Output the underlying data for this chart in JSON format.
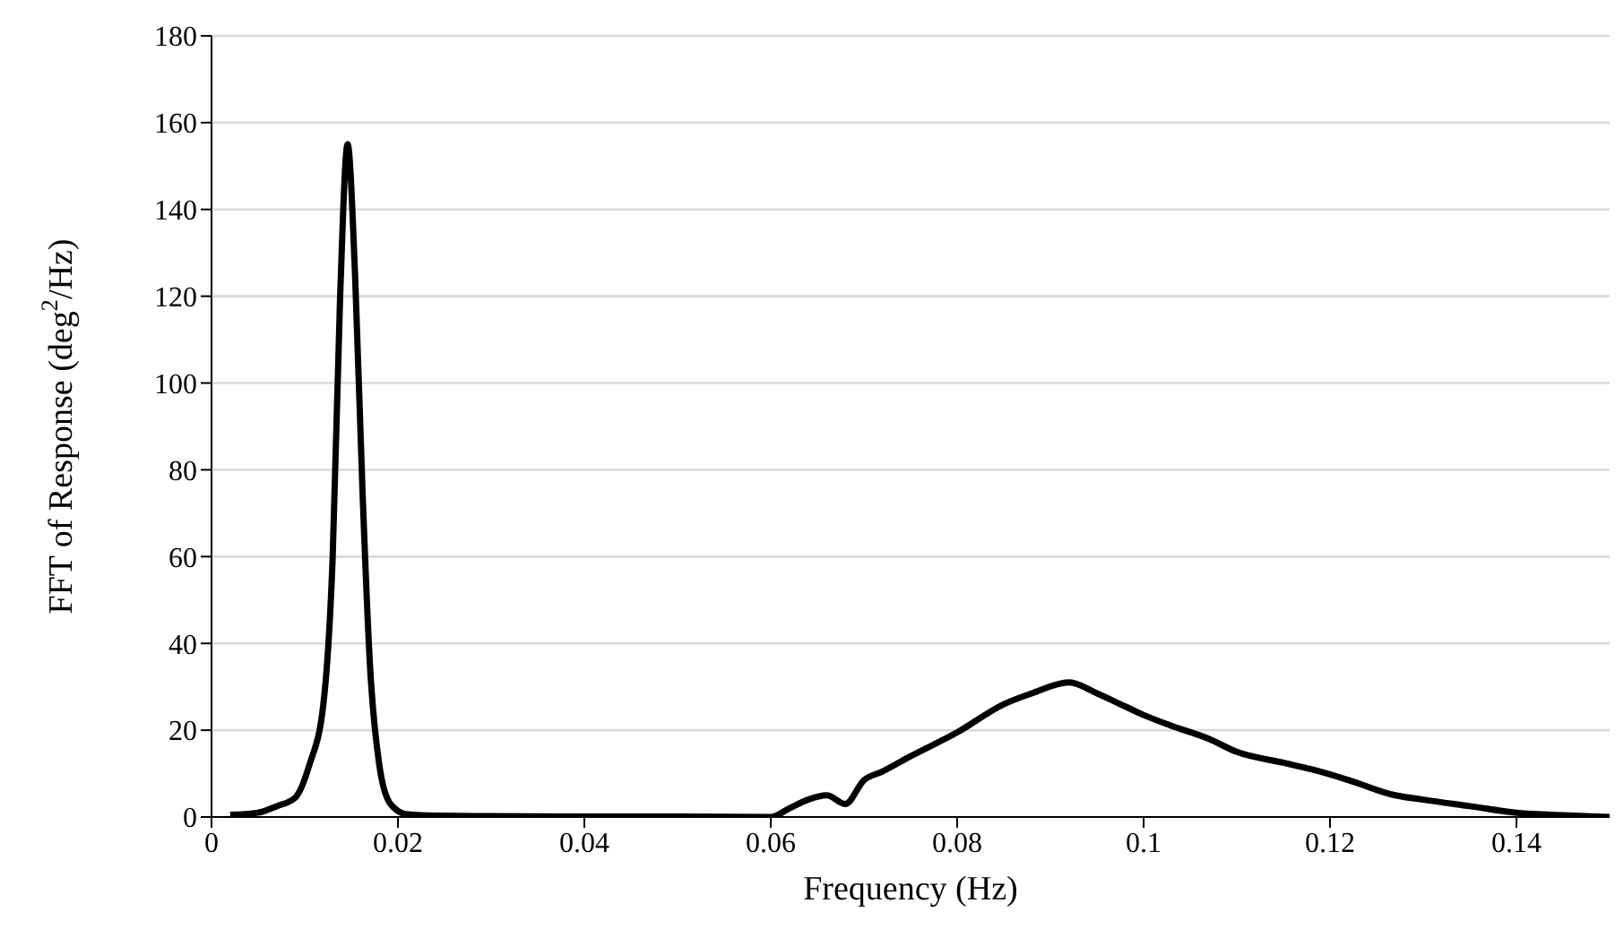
{
  "chart_data": {
    "type": "line",
    "xlabel": "Frequency (Hz)",
    "ylabel": "FFT of Response (deg$^{2}$/Hz)",
    "xlim": [
      0,
      0.15
    ],
    "xticks": [
      0,
      0.02,
      0.04,
      0.06,
      0.08,
      0.1,
      0.12,
      0.14
    ],
    "ylim": [
      0,
      180
    ],
    "yticks": [
      0,
      20,
      40,
      60,
      80,
      100,
      120,
      140,
      160,
      180
    ],
    "grid": "y",
    "legend": false,
    "marker": "none",
    "line_style": "solid",
    "series": [
      {
        "color": "#000000",
        "x": [
          0.002,
          0.005,
          0.007,
          0.009,
          0.0105,
          0.012,
          0.013,
          0.0138,
          0.0146,
          0.0154,
          0.0162,
          0.017,
          0.018,
          0.0192,
          0.021,
          0.024,
          0.03,
          0.04,
          0.05,
          0.06,
          0.062,
          0.064,
          0.066,
          0.068,
          0.07,
          0.072,
          0.075,
          0.08,
          0.085,
          0.088,
          0.092,
          0.095,
          0.098,
          0.1,
          0.103,
          0.107,
          0.11,
          0.115,
          0.118,
          0.122,
          0.127,
          0.13,
          0.135,
          0.14,
          0.145,
          0.15
        ],
        "values": [
          0.5,
          1,
          2.5,
          4.5,
          12,
          26,
          60,
          120,
          155,
          125,
          75,
          35,
          12,
          3,
          0.6,
          0.3,
          0.2,
          0.1,
          0.1,
          0,
          2,
          4,
          5,
          3,
          8.5,
          10.5,
          14,
          19.5,
          26,
          28.5,
          31,
          28.5,
          25.5,
          23.5,
          21,
          18,
          15,
          12.5,
          11,
          8.5,
          5,
          4,
          2.5,
          1,
          0.4,
          0
        ]
      }
    ]
  }
}
